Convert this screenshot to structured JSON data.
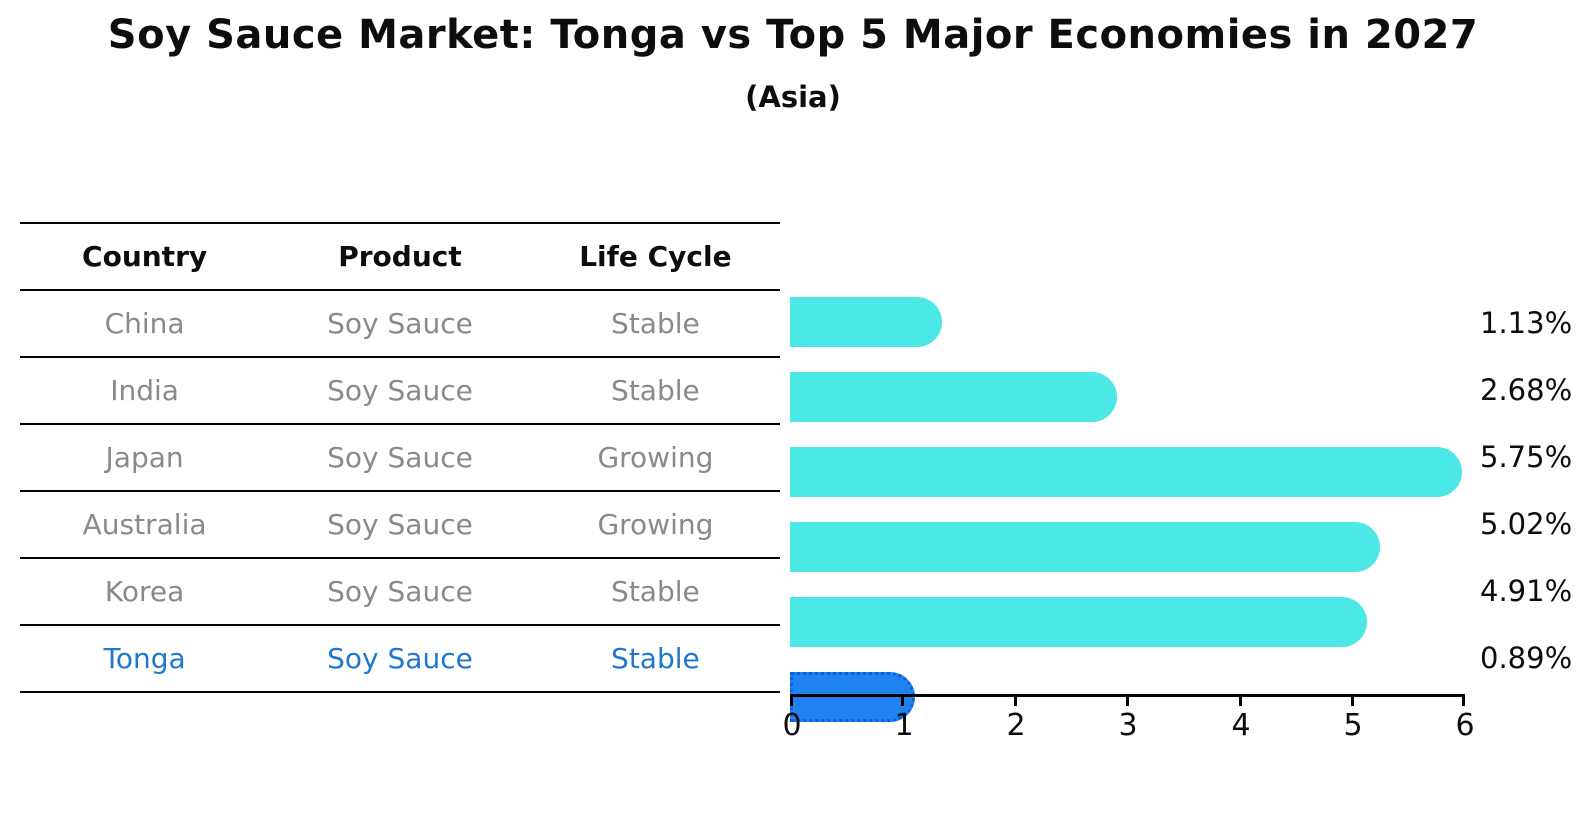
{
  "title": "Soy Sauce Market: Tonga vs Top 5 Major Economies in 2027",
  "subtitle": "(Asia)",
  "table": {
    "headers": [
      "Country",
      "Product",
      "Life Cycle"
    ],
    "rows": [
      {
        "country": "China",
        "product": "Soy Sauce",
        "life_cycle": "Stable"
      },
      {
        "country": "India",
        "product": "Soy Sauce",
        "life_cycle": "Stable"
      },
      {
        "country": "Japan",
        "product": "Soy Sauce",
        "life_cycle": "Growing"
      },
      {
        "country": "Australia",
        "product": "Soy Sauce",
        "life_cycle": "Growing"
      },
      {
        "country": "Korea",
        "product": "Soy Sauce",
        "life_cycle": "Stable"
      },
      {
        "country": "Tonga",
        "product": "Soy Sauce",
        "life_cycle": "Stable"
      }
    ],
    "highlight_row": "Tonga"
  },
  "chart_data": {
    "type": "bar",
    "orientation": "horizontal",
    "title": "Soy Sauce Market: Tonga vs Top 5 Major Economies in 2027",
    "subtitle": "(Asia)",
    "categories": [
      "China",
      "India",
      "Japan",
      "Australia",
      "Korea",
      "Tonga"
    ],
    "values": [
      1.13,
      2.68,
      5.75,
      5.02,
      4.91,
      0.89
    ],
    "value_labels": [
      "1.13%",
      "2.68%",
      "5.75%",
      "5.02%",
      "4.91%",
      "0.89%"
    ],
    "xlabel": "",
    "ylabel": "",
    "xlim": [
      0,
      6
    ],
    "x_ticks": [
      "0",
      "1",
      "2",
      "3",
      "4",
      "5",
      "6"
    ],
    "grid": false,
    "legend": "none",
    "highlight_index": 5,
    "colors": {
      "bar": "#4BE8E6",
      "highlight_bar": "#1E82F0",
      "highlight_border": "#0F5FD6",
      "highlight_text": "#1F78CF",
      "table_text": "#8A8A8A",
      "axis_text": "#0D0D0D"
    }
  }
}
